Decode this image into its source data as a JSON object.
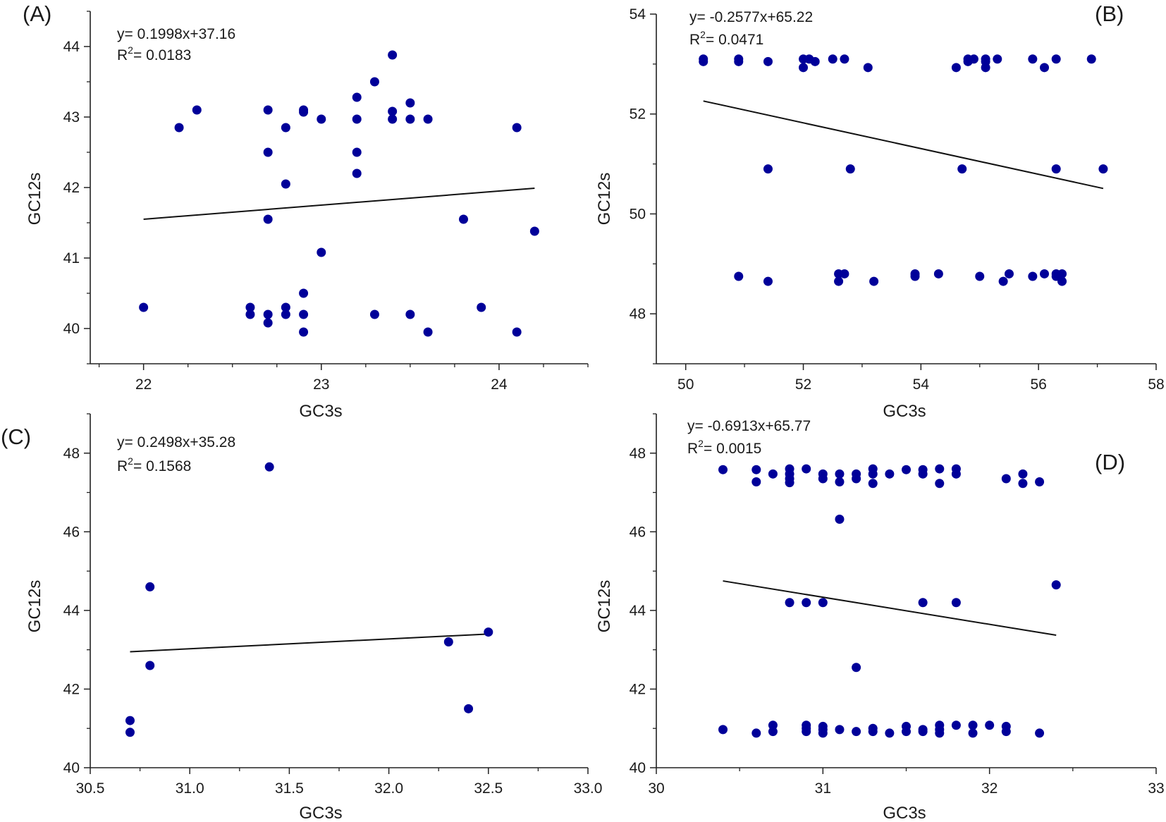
{
  "figure": {
    "marker_color": "#000099",
    "line_color": "#111111",
    "axis_color": "#222222"
  },
  "chart_data": [
    {
      "type": "scatter",
      "panel_label": "(A)",
      "xlabel": "GC3s",
      "ylabel": "GC12s",
      "xlim": [
        21.7,
        24.5
      ],
      "ylim": [
        39.5,
        44.5
      ],
      "xticks": [
        {
          "v": 22,
          "t": "22"
        },
        {
          "v": 23,
          "t": "23"
        },
        {
          "v": 24,
          "t": "24"
        }
      ],
      "xminor": [
        21.75,
        22.25,
        22.5,
        22.75,
        23.25,
        23.5,
        23.75,
        24.25,
        24.5
      ],
      "yticks": [
        {
          "v": 40,
          "t": "40"
        },
        {
          "v": 41,
          "t": "41"
        },
        {
          "v": 42,
          "t": "42"
        },
        {
          "v": 43,
          "t": "43"
        },
        {
          "v": 44,
          "t": "44"
        }
      ],
      "yminor": [
        39.5,
        40.5,
        41.5,
        42.5,
        43.5,
        44.5
      ],
      "equation": {
        "eq": "y= 0.1998x+37.16",
        "r2_label": "R",
        "r2_sup": "2",
        "r2_value": "= 0.0183"
      },
      "fit_line": {
        "x": [
          22.0,
          24.2
        ],
        "y": [
          41.55,
          41.99
        ]
      },
      "x": [
        22.0,
        22.2,
        22.3,
        22.6,
        22.6,
        22.7,
        22.7,
        22.7,
        22.7,
        22.7,
        22.8,
        22.8,
        22.8,
        22.8,
        22.9,
        22.9,
        22.9,
        22.9,
        22.9,
        23.0,
        23.0,
        23.2,
        23.2,
        23.2,
        23.2,
        23.3,
        23.3,
        23.4,
        23.4,
        23.4,
        23.5,
        23.5,
        23.5,
        23.6,
        23.6,
        23.8,
        23.9,
        24.1,
        24.1,
        24.2
      ],
      "y": [
        40.3,
        42.85,
        43.1,
        40.3,
        40.2,
        43.1,
        42.5,
        41.55,
        40.2,
        40.08,
        42.85,
        42.05,
        40.3,
        40.2,
        43.1,
        43.07,
        40.5,
        40.2,
        39.95,
        42.97,
        41.08,
        43.28,
        42.97,
        42.5,
        42.2,
        43.5,
        40.2,
        43.88,
        43.08,
        42.97,
        43.2,
        42.97,
        40.2,
        42.97,
        39.95,
        41.55,
        40.3,
        42.85,
        39.95,
        41.38
      ]
    },
    {
      "type": "scatter",
      "panel_label": "(B)",
      "xlabel": "GC3s",
      "ylabel": "GC12s",
      "xlim": [
        49.5,
        58
      ],
      "ylim": [
        47,
        54
      ],
      "xticks": [
        {
          "v": 50,
          "t": "50"
        },
        {
          "v": 52,
          "t": "52"
        },
        {
          "v": 54,
          "t": "54"
        },
        {
          "v": 56,
          "t": "56"
        },
        {
          "v": 58,
          "t": "58"
        }
      ],
      "xminor": [
        51,
        53,
        55,
        57
      ],
      "yticks": [
        {
          "v": 48,
          "t": "48"
        },
        {
          "v": 50,
          "t": "50"
        },
        {
          "v": 52,
          "t": "52"
        },
        {
          "v": 54,
          "t": "54"
        }
      ],
      "yminor": [
        47,
        49,
        51,
        53
      ],
      "equation": {
        "eq": "y= -0.2577x+65.22",
        "r2_label": "R",
        "r2_sup": "2",
        "r2_value": "= 0.0471"
      },
      "fit_line": {
        "x": [
          50.3,
          57.1
        ],
        "y": [
          52.26,
          50.51
        ]
      },
      "x": [
        50.3,
        50.3,
        50.9,
        50.9,
        51.4,
        52.0,
        52.0,
        52.1,
        52.2,
        52.5,
        52.7,
        53.1,
        54.6,
        54.8,
        54.8,
        54.9,
        55.1,
        55.1,
        55.1,
        55.3,
        55.9,
        56.1,
        56.3,
        56.9,
        51.4,
        52.8,
        54.7,
        56.3,
        57.1,
        50.9,
        51.4,
        52.6,
        52.6,
        52.7,
        53.2,
        53.9,
        53.9,
        54.3,
        55.0,
        55.4,
        55.5,
        55.9,
        56.1,
        56.3,
        56.3,
        56.4,
        56.4
      ],
      "y": [
        53.1,
        53.05,
        53.1,
        53.05,
        53.05,
        53.1,
        52.93,
        53.1,
        53.05,
        53.1,
        53.1,
        52.93,
        52.93,
        53.1,
        53.05,
        53.1,
        53.1,
        53.05,
        52.93,
        53.1,
        53.1,
        52.93,
        53.1,
        53.1,
        50.9,
        50.9,
        50.9,
        50.9,
        50.9,
        48.75,
        48.65,
        48.8,
        48.65,
        48.8,
        48.65,
        48.8,
        48.75,
        48.8,
        48.75,
        48.65,
        48.8,
        48.75,
        48.8,
        48.8,
        48.75,
        48.8,
        48.65
      ]
    },
    {
      "type": "scatter",
      "panel_label": "(C)",
      "xlabel": "GC3s",
      "ylabel": "GC12s",
      "xlim": [
        30.5,
        33.0
      ],
      "ylim": [
        40,
        49
      ],
      "xticks": [
        {
          "v": 30.5,
          "t": "30.5"
        },
        {
          "v": 31.0,
          "t": "31.0"
        },
        {
          "v": 31.5,
          "t": "31.5"
        },
        {
          "v": 32.0,
          "t": "32.0"
        },
        {
          "v": 32.5,
          "t": "32.5"
        },
        {
          "v": 33.0,
          "t": "33.0"
        }
      ],
      "xminor": [
        30.75,
        31.25,
        31.75,
        32.25,
        32.75
      ],
      "yticks": [
        {
          "v": 40,
          "t": "40"
        },
        {
          "v": 42,
          "t": "42"
        },
        {
          "v": 44,
          "t": "44"
        },
        {
          "v": 46,
          "t": "46"
        },
        {
          "v": 48,
          "t": "48"
        }
      ],
      "yminor": [
        41,
        43,
        45,
        47,
        49
      ],
      "equation": {
        "eq": "y= 0.2498x+35.28",
        "r2_label": "R",
        "r2_sup": "2",
        "r2_value": "= 0.1568"
      },
      "fit_line": {
        "x": [
          30.7,
          32.5
        ],
        "y": [
          42.95,
          43.4
        ]
      },
      "x": [
        30.7,
        30.7,
        30.8,
        30.8,
        31.4,
        32.3,
        32.4,
        32.5
      ],
      "y": [
        41.2,
        40.9,
        44.6,
        42.6,
        47.65,
        43.2,
        41.5,
        43.45
      ]
    },
    {
      "type": "scatter",
      "panel_label": "(D)",
      "xlabel": "GC3s",
      "ylabel": "GC12s",
      "xlim": [
        30,
        33
      ],
      "ylim": [
        40,
        49
      ],
      "xticks": [
        {
          "v": 30,
          "t": "30"
        },
        {
          "v": 31,
          "t": "31"
        },
        {
          "v": 32,
          "t": "32"
        },
        {
          "v": 33,
          "t": "33"
        }
      ],
      "xminor": [
        30.5,
        31.5,
        32.5
      ],
      "yticks": [
        {
          "v": 40,
          "t": "40"
        },
        {
          "v": 42,
          "t": "42"
        },
        {
          "v": 44,
          "t": "44"
        },
        {
          "v": 46,
          "t": "46"
        },
        {
          "v": 48,
          "t": "48"
        }
      ],
      "yminor": [
        41,
        43,
        45,
        47,
        49
      ],
      "equation": {
        "eq": "y= -0.6913x+65.77",
        "r2_label": "R",
        "r2_sup": "2",
        "r2_value": "= 0.0015"
      },
      "fit_line": {
        "x": [
          30.4,
          32.4
        ],
        "y": [
          44.75,
          43.37
        ]
      },
      "x": [
        30.4,
        30.6,
        30.6,
        30.7,
        30.8,
        30.8,
        30.8,
        30.8,
        30.9,
        31.0,
        31.0,
        31.1,
        31.1,
        31.2,
        31.2,
        31.3,
        31.3,
        31.3,
        31.4,
        31.5,
        31.6,
        31.6,
        31.7,
        31.7,
        31.8,
        31.8,
        32.1,
        32.2,
        32.2,
        32.3,
        31.1,
        30.8,
        30.9,
        31.0,
        31.6,
        31.8,
        32.4,
        31.2,
        30.4,
        30.6,
        30.7,
        30.7,
        30.9,
        30.9,
        30.9,
        31.0,
        31.0,
        31.0,
        31.1,
        31.2,
        31.3,
        31.3,
        31.4,
        31.5,
        31.5,
        31.6,
        31.6,
        31.7,
        31.7,
        31.7,
        31.8,
        31.9,
        31.9,
        32.0,
        32.1,
        32.1,
        32.3
      ],
      "y": [
        47.58,
        47.58,
        47.27,
        47.47,
        47.6,
        47.47,
        47.35,
        47.25,
        47.6,
        47.47,
        47.35,
        47.47,
        47.27,
        47.47,
        47.35,
        47.6,
        47.47,
        47.23,
        47.47,
        47.58,
        47.58,
        47.47,
        47.6,
        47.23,
        47.6,
        47.47,
        47.35,
        47.47,
        47.23,
        47.27,
        46.32,
        44.2,
        44.2,
        44.2,
        44.2,
        44.2,
        44.65,
        42.55,
        40.97,
        40.88,
        41.08,
        40.92,
        41.08,
        41.0,
        40.92,
        41.05,
        40.97,
        40.88,
        40.97,
        40.92,
        41.0,
        40.92,
        40.88,
        41.05,
        40.92,
        40.97,
        40.92,
        41.08,
        40.97,
        40.88,
        41.08,
        41.08,
        40.88,
        41.08,
        41.05,
        40.92,
        40.88
      ]
    }
  ]
}
